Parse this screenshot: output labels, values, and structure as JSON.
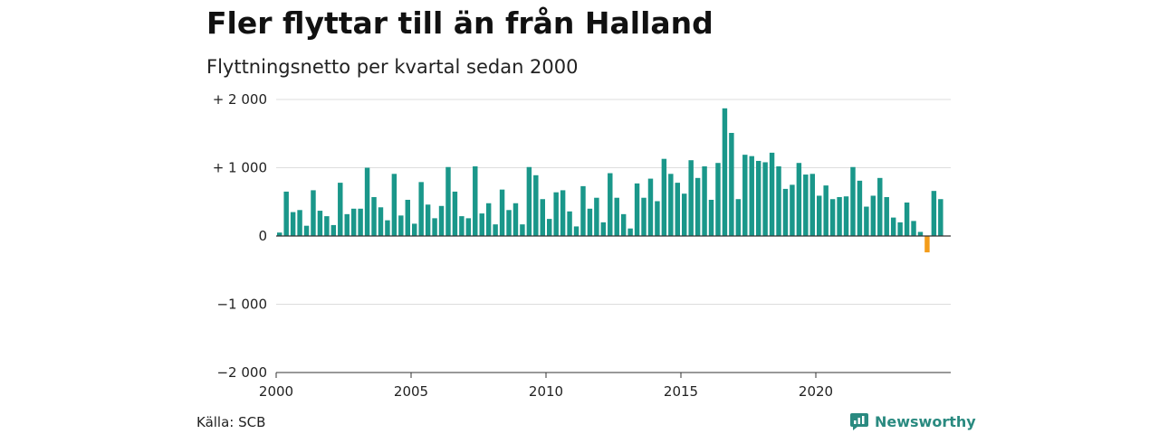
{
  "title": "Fler flyttar till än från Halland",
  "subtitle": "Flyttningsnetto per kvartal sedan 2000",
  "source": "Källa: SCB",
  "brand": {
    "name": "Newsworthy",
    "icon": "newsworthy-logo-icon",
    "color": "#2a8a80"
  },
  "colors": {
    "positive": "#1a978a",
    "negative": "#f39c1a",
    "grid": "#dddddd",
    "zero_line": "#333333"
  },
  "chart_data": {
    "type": "bar",
    "title": "Fler flyttar till än från Halland",
    "subtitle": "Flyttningsnetto per kvartal sedan 2000",
    "xlabel": "",
    "ylabel": "",
    "ylim": [
      -2000,
      2000
    ],
    "xlim": [
      2000,
      2025
    ],
    "grid": true,
    "y_ticks": [
      {
        "value": 2000,
        "label": "+ 2 000"
      },
      {
        "value": 1000,
        "label": "+ 1 000"
      },
      {
        "value": 0,
        "label": "0"
      },
      {
        "value": -1000,
        "label": "−1 000"
      },
      {
        "value": -2000,
        "label": "−2 000"
      }
    ],
    "x_ticks": [
      {
        "value": 2000,
        "label": "2000"
      },
      {
        "value": 2005,
        "label": "2005"
      },
      {
        "value": 2010,
        "label": "2010"
      },
      {
        "value": 2015,
        "label": "2015"
      },
      {
        "value": 2020,
        "label": "2020"
      }
    ],
    "series": [
      {
        "start": "2000-Q1",
        "values": [
          50,
          650,
          350,
          380,
          150,
          670,
          370,
          290,
          160,
          780,
          320,
          400,
          400,
          1000,
          570,
          420,
          230,
          910,
          300,
          530,
          180,
          790,
          460,
          260,
          440,
          1010,
          650,
          290,
          260,
          1020,
          330,
          480,
          170,
          680,
          380,
          480,
          170,
          1010,
          890,
          540,
          250,
          640,
          670,
          360,
          140,
          730,
          400,
          560,
          200,
          920,
          560,
          320,
          110,
          770,
          560,
          840,
          510,
          1130,
          910,
          780,
          620,
          1110,
          850,
          1020,
          530,
          1070,
          1870,
          1510,
          540,
          1190,
          1170,
          1100,
          1080,
          1220,
          1020,
          690,
          750,
          1070,
          900,
          910,
          590,
          740,
          540,
          570,
          580,
          1010,
          810,
          430,
          590,
          850,
          570,
          270,
          200,
          490,
          220,
          60,
          -240,
          660,
          540
        ]
      }
    ]
  }
}
